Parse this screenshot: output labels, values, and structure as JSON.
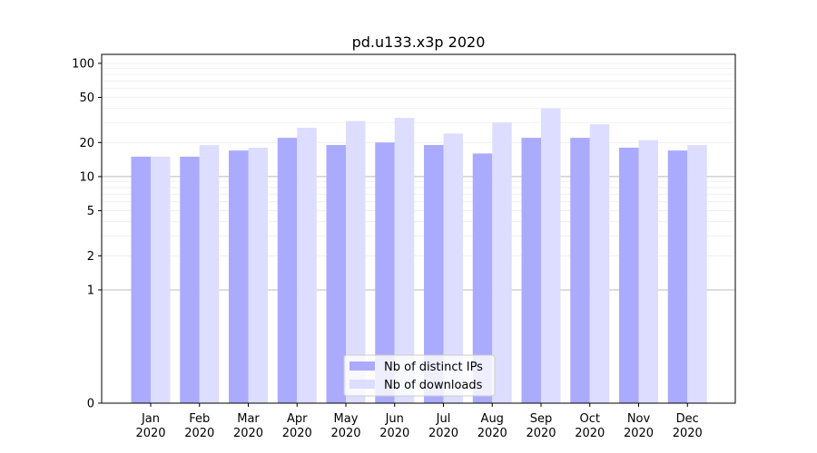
{
  "chart_data": {
    "type": "bar",
    "title": "pd.u133.x3p 2020",
    "xlabel": "",
    "ylabel": "",
    "y_scale": "symlog",
    "ylim": [
      0,
      120
    ],
    "yticks": [
      0,
      1,
      2,
      5,
      10,
      20,
      50,
      100
    ],
    "ytick_labels": [
      "0",
      "1",
      "2",
      "5",
      "10",
      "20",
      "50",
      "100"
    ],
    "categories": [
      [
        "Jan",
        "2020"
      ],
      [
        "Feb",
        "2020"
      ],
      [
        "Mar",
        "2020"
      ],
      [
        "Apr",
        "2020"
      ],
      [
        "May",
        "2020"
      ],
      [
        "Jun",
        "2020"
      ],
      [
        "Jul",
        "2020"
      ],
      [
        "Aug",
        "2020"
      ],
      [
        "Sep",
        "2020"
      ],
      [
        "Oct",
        "2020"
      ],
      [
        "Nov",
        "2020"
      ],
      [
        "Dec",
        "2020"
      ]
    ],
    "series": [
      {
        "name": "Nb of distinct IPs",
        "color": "#aaaaff",
        "values": [
          15,
          15,
          17,
          22,
          19,
          20,
          19,
          16,
          22,
          22,
          18,
          17
        ]
      },
      {
        "name": "Nb of downloads",
        "color": "#ddddff",
        "values": [
          15,
          19,
          18,
          27,
          31,
          33,
          24,
          30,
          40,
          29,
          21,
          19
        ]
      }
    ],
    "grid": true,
    "legend_position": "bottom-center"
  }
}
